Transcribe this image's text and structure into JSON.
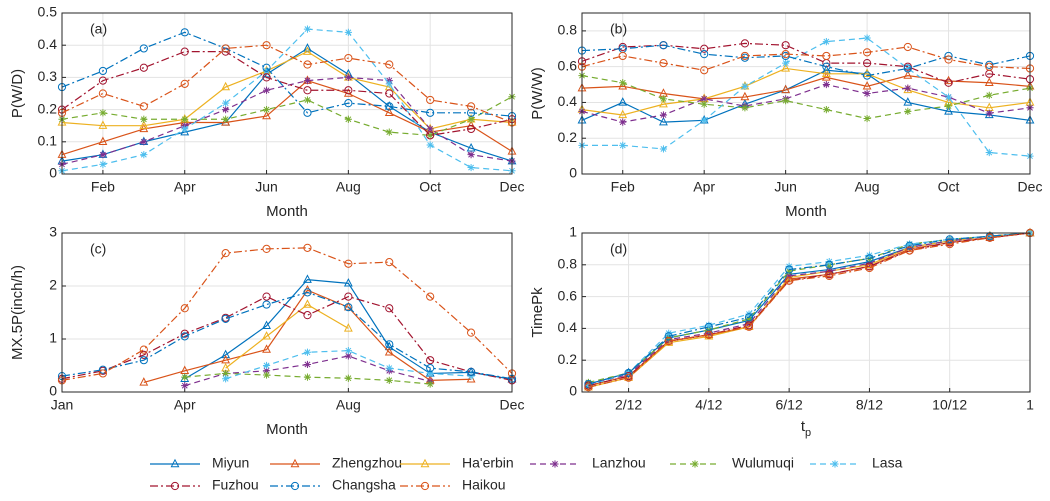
{
  "chart_data": [
    {
      "type": "line",
      "title": "(a)",
      "xlabel": "Month",
      "ylabel": "P(W/D)",
      "x": [
        1,
        2,
        3,
        4,
        5,
        6,
        7,
        8,
        9,
        10,
        11,
        12
      ],
      "xlim": [
        1,
        12
      ],
      "xticks": [
        {
          "value": 2,
          "label": "Feb"
        },
        {
          "value": 4,
          "label": "Apr"
        },
        {
          "value": 6,
          "label": "Jun"
        },
        {
          "value": 8,
          "label": "Aug"
        },
        {
          "value": 10,
          "label": "Oct"
        },
        {
          "value": 12,
          "label": "Dec"
        }
      ],
      "ylim": [
        0,
        0.5
      ],
      "yticks": [
        0,
        0.1,
        0.2,
        0.3,
        0.4,
        0.5
      ],
      "grid": true,
      "series": [
        {
          "name": "Miyun",
          "color": "#0072BD",
          "dash": "solid",
          "marker": "triangle",
          "values": [
            0.04,
            0.06,
            0.1,
            0.13,
            0.16,
            0.31,
            0.39,
            0.31,
            0.21,
            0.13,
            0.08,
            0.04
          ]
        },
        {
          "name": "Zhengzhou",
          "color": "#D95319",
          "dash": "solid",
          "marker": "triangle",
          "values": [
            0.06,
            0.1,
            0.14,
            0.16,
            0.16,
            0.18,
            0.29,
            0.25,
            0.19,
            0.13,
            0.15,
            0.07
          ]
        },
        {
          "name": "Ha'erbin",
          "color": "#EDB120",
          "dash": "solid",
          "marker": "triangle",
          "values": [
            0.16,
            0.15,
            0.15,
            0.17,
            0.27,
            0.32,
            0.38,
            0.3,
            0.27,
            0.14,
            0.17,
            0.16
          ]
        },
        {
          "name": "Lanzhou",
          "color": "#7E2F8E",
          "dash": "dash",
          "marker": "star",
          "values": [
            0.03,
            0.06,
            0.1,
            0.15,
            0.2,
            0.26,
            0.29,
            0.3,
            0.29,
            0.14,
            0.06,
            0.04
          ]
        },
        {
          "name": "Wulumuqi",
          "color": "#77AC30",
          "dash": "dash",
          "marker": "star",
          "values": [
            0.17,
            0.19,
            0.17,
            0.17,
            0.17,
            0.2,
            0.23,
            0.17,
            0.13,
            0.12,
            0.17,
            0.24
          ]
        },
        {
          "name": "Lasa",
          "color": "#4DBEEE",
          "dash": "dash",
          "marker": "star",
          "values": [
            0.01,
            0.03,
            0.06,
            0.14,
            0.22,
            0.32,
            0.45,
            0.44,
            0.28,
            0.09,
            0.02,
            0.01
          ]
        },
        {
          "name": "Fuzhou",
          "color": "#A2142F",
          "dash": "dashdot",
          "marker": "circle",
          "values": [
            0.2,
            0.29,
            0.33,
            0.38,
            0.38,
            0.3,
            0.26,
            0.26,
            0.25,
            0.12,
            0.14,
            0.17
          ]
        },
        {
          "name": "Changsha",
          "color": "#0072BD",
          "dash": "dashdot",
          "marker": "circle",
          "values": [
            0.27,
            0.32,
            0.39,
            0.44,
            0.39,
            0.33,
            0.19,
            0.22,
            0.21,
            0.19,
            0.19,
            0.18
          ]
        },
        {
          "name": "Haikou",
          "color": "#D95319",
          "dash": "dashdot",
          "marker": "circle",
          "values": [
            0.19,
            0.25,
            0.21,
            0.28,
            0.39,
            0.4,
            0.34,
            0.36,
            0.34,
            0.23,
            0.21,
            0.16
          ]
        }
      ]
    },
    {
      "type": "line",
      "title": "(b)",
      "xlabel": "Month",
      "ylabel": "P(W/W)",
      "x": [
        1,
        2,
        3,
        4,
        5,
        6,
        7,
        8,
        9,
        10,
        11,
        12
      ],
      "xlim": [
        1,
        12
      ],
      "xticks": [
        {
          "value": 2,
          "label": "Feb"
        },
        {
          "value": 4,
          "label": "Apr"
        },
        {
          "value": 6,
          "label": "Jun"
        },
        {
          "value": 8,
          "label": "Aug"
        },
        {
          "value": 10,
          "label": "Oct"
        },
        {
          "value": 12,
          "label": "Dec"
        }
      ],
      "ylim": [
        0,
        0.9
      ],
      "yticks": [
        0,
        0.2,
        0.4,
        0.6,
        0.8
      ],
      "grid": true,
      "series": [
        {
          "name": "Miyun",
          "color": "#0072BD",
          "dash": "solid",
          "marker": "triangle",
          "values": [
            0.3,
            0.4,
            0.29,
            0.3,
            0.39,
            0.47,
            0.58,
            0.56,
            0.4,
            0.35,
            0.33,
            0.3
          ]
        },
        {
          "name": "Zhengzhou",
          "color": "#D95319",
          "dash": "solid",
          "marker": "triangle",
          "values": [
            0.48,
            0.49,
            0.45,
            0.42,
            0.43,
            0.47,
            0.54,
            0.49,
            0.55,
            0.52,
            0.51,
            0.49
          ]
        },
        {
          "name": "Ha'erbin",
          "color": "#EDB120",
          "dash": "solid",
          "marker": "triangle",
          "values": [
            0.36,
            0.33,
            0.39,
            0.42,
            0.49,
            0.59,
            0.56,
            0.56,
            0.47,
            0.4,
            0.37,
            0.4
          ]
        },
        {
          "name": "Lanzhou",
          "color": "#7E2F8E",
          "dash": "dash",
          "marker": "star",
          "values": [
            0.35,
            0.29,
            0.33,
            0.42,
            0.38,
            0.42,
            0.5,
            0.45,
            0.48,
            0.43,
            0.34,
            0.37
          ]
        },
        {
          "name": "Wulumuqi",
          "color": "#77AC30",
          "dash": "dash",
          "marker": "star",
          "values": [
            0.55,
            0.51,
            0.42,
            0.39,
            0.37,
            0.41,
            0.36,
            0.31,
            0.35,
            0.38,
            0.44,
            0.48
          ]
        },
        {
          "name": "Lasa",
          "color": "#4DBEEE",
          "dash": "dash",
          "marker": "star",
          "values": [
            0.16,
            0.16,
            0.14,
            0.3,
            0.49,
            0.62,
            0.74,
            0.76,
            0.59,
            0.43,
            0.12,
            0.1
          ]
        },
        {
          "name": "Fuzhou",
          "color": "#A2142F",
          "dash": "dashdot",
          "marker": "circle",
          "values": [
            0.63,
            0.71,
            0.72,
            0.7,
            0.73,
            0.72,
            0.62,
            0.62,
            0.6,
            0.51,
            0.56,
            0.53
          ]
        },
        {
          "name": "Changsha",
          "color": "#0072BD",
          "dash": "dashdot",
          "marker": "circle",
          "values": [
            0.69,
            0.7,
            0.72,
            0.67,
            0.65,
            0.66,
            0.6,
            0.55,
            0.59,
            0.66,
            0.61,
            0.66
          ]
        },
        {
          "name": "Haikou",
          "color": "#D95319",
          "dash": "dashdot",
          "marker": "circle",
          "values": [
            0.6,
            0.66,
            0.62,
            0.58,
            0.66,
            0.67,
            0.66,
            0.68,
            0.71,
            0.64,
            0.6,
            0.59
          ]
        }
      ]
    },
    {
      "type": "line",
      "title": "(c)",
      "xlabel": "Month",
      "ylabel": "MX.5P(inch/h)",
      "x": [
        1,
        2,
        3,
        4,
        5,
        6,
        7,
        8,
        9,
        10,
        11,
        12
      ],
      "xlim": [
        1,
        12
      ],
      "xticks": [
        {
          "value": 1,
          "label": "Jan"
        },
        {
          "value": 4,
          "label": "Apr"
        },
        {
          "value": 8,
          "label": "Aug"
        },
        {
          "value": 12,
          "label": "Dec"
        }
      ],
      "ylim": [
        0,
        3
      ],
      "yticks": [
        0,
        1,
        2,
        3
      ],
      "grid": true,
      "series": [
        {
          "name": "Miyun",
          "color": "#0072BD",
          "dash": "solid",
          "marker": "triangle",
          "values": [
            null,
            null,
            null,
            0.25,
            0.7,
            1.25,
            2.12,
            2.05,
            0.85,
            0.35,
            0.37,
            0.24
          ]
        },
        {
          "name": "Zhengzhou",
          "color": "#D95319",
          "dash": "solid",
          "marker": "triangle",
          "values": [
            null,
            null,
            0.18,
            0.4,
            0.6,
            0.8,
            1.92,
            1.6,
            0.75,
            0.22,
            0.24,
            null
          ]
        },
        {
          "name": "Ha'erbin",
          "color": "#EDB120",
          "dash": "solid",
          "marker": "triangle",
          "values": [
            null,
            null,
            null,
            null,
            0.45,
            1.05,
            1.65,
            1.2,
            null,
            null,
            null,
            null
          ]
        },
        {
          "name": "Lanzhou",
          "color": "#7E2F8E",
          "dash": "dash",
          "marker": "star",
          "values": [
            null,
            null,
            null,
            0.12,
            0.35,
            0.4,
            0.52,
            0.68,
            0.4,
            0.2,
            null,
            null
          ]
        },
        {
          "name": "Wulumuqi",
          "color": "#77AC30",
          "dash": "dash",
          "marker": "star",
          "values": [
            null,
            null,
            null,
            0.28,
            0.35,
            0.32,
            0.28,
            0.26,
            0.22,
            0.15,
            null,
            null
          ]
        },
        {
          "name": "Lasa",
          "color": "#4DBEEE",
          "dash": "dash",
          "marker": "star",
          "values": [
            null,
            null,
            null,
            null,
            0.25,
            0.5,
            0.75,
            0.78,
            0.45,
            0.35,
            0.3,
            null
          ]
        },
        {
          "name": "Fuzhou",
          "color": "#A2142F",
          "dash": "dashdot",
          "marker": "circle",
          "values": [
            0.25,
            0.4,
            0.7,
            1.1,
            1.4,
            1.8,
            1.45,
            1.8,
            1.58,
            0.6,
            0.38,
            0.22
          ]
        },
        {
          "name": "Changsha",
          "color": "#0072BD",
          "dash": "dashdot",
          "marker": "circle",
          "values": [
            0.3,
            0.42,
            0.6,
            1.05,
            1.38,
            1.65,
            1.88,
            1.6,
            0.9,
            0.45,
            0.38,
            0.25
          ]
        },
        {
          "name": "Haikou",
          "color": "#D95319",
          "dash": "dashdot",
          "marker": "circle",
          "values": [
            0.22,
            0.35,
            0.8,
            1.58,
            2.62,
            2.7,
            2.72,
            2.42,
            2.45,
            1.8,
            1.12,
            0.35
          ]
        }
      ]
    },
    {
      "type": "line",
      "title": "(d)",
      "xlabel": "t",
      "xlabel_subscript": "p",
      "ylabel": "TimePk",
      "x": [
        0.0833,
        0.1667,
        0.25,
        0.3333,
        0.4167,
        0.5,
        0.5833,
        0.6667,
        0.75,
        0.8333,
        0.9167,
        1
      ],
      "xlim": [
        0.07,
        1
      ],
      "xticks": [
        {
          "value": 0.1667,
          "label": "2/12"
        },
        {
          "value": 0.3333,
          "label": "4/12"
        },
        {
          "value": 0.5,
          "label": "6/12"
        },
        {
          "value": 0.6667,
          "label": "8/12"
        },
        {
          "value": 0.8333,
          "label": "10/12"
        },
        1
      ],
      "ylim": [
        0,
        1
      ],
      "yticks": [
        0,
        0.2,
        0.4,
        0.6,
        0.8,
        1
      ],
      "grid": true,
      "series": [
        {
          "name": "Miyun",
          "color": "#0072BD",
          "dash": "solid",
          "marker": "triangle",
          "values": [
            0.05,
            0.12,
            0.34,
            0.39,
            0.45,
            0.74,
            0.77,
            0.82,
            0.91,
            0.95,
            0.98,
            1
          ]
        },
        {
          "name": "Zhengzhou",
          "color": "#D95319",
          "dash": "solid",
          "marker": "triangle",
          "values": [
            0.04,
            0.1,
            0.32,
            0.36,
            0.41,
            0.71,
            0.74,
            0.79,
            0.9,
            0.94,
            0.97,
            1
          ]
        },
        {
          "name": "Ha'erbin",
          "color": "#EDB120",
          "dash": "solid",
          "marker": "triangle",
          "values": [
            0.03,
            0.09,
            0.31,
            0.35,
            0.41,
            0.72,
            0.76,
            0.8,
            0.91,
            0.95,
            0.98,
            1
          ]
        },
        {
          "name": "Lanzhou",
          "color": "#7E2F8E",
          "dash": "dash",
          "marker": "star",
          "values": [
            0.05,
            0.11,
            0.33,
            0.37,
            0.43,
            0.73,
            0.76,
            0.81,
            0.91,
            0.95,
            0.98,
            1
          ]
        },
        {
          "name": "Wulumuqi",
          "color": "#77AC30",
          "dash": "dash",
          "marker": "star",
          "values": [
            0.06,
            0.12,
            0.34,
            0.39,
            0.46,
            0.76,
            0.8,
            0.84,
            0.93,
            0.96,
            0.98,
            1
          ]
        },
        {
          "name": "Lasa",
          "color": "#4DBEEE",
          "dash": "dash",
          "marker": "star",
          "values": [
            0.04,
            0.12,
            0.37,
            0.42,
            0.49,
            0.79,
            0.82,
            0.86,
            0.93,
            0.96,
            0.98,
            1
          ]
        },
        {
          "name": "Fuzhou",
          "color": "#A2142F",
          "dash": "dashdot",
          "marker": "circle",
          "values": [
            0.04,
            0.1,
            0.32,
            0.36,
            0.42,
            0.7,
            0.74,
            0.79,
            0.89,
            0.94,
            0.97,
            1
          ]
        },
        {
          "name": "Changsha",
          "color": "#0072BD",
          "dash": "dashdot",
          "marker": "circle",
          "values": [
            0.05,
            0.12,
            0.35,
            0.41,
            0.47,
            0.77,
            0.8,
            0.84,
            0.92,
            0.96,
            0.98,
            1
          ]
        },
        {
          "name": "Haikou",
          "color": "#D95319",
          "dash": "dashdot",
          "marker": "circle",
          "values": [
            0.03,
            0.09,
            0.32,
            0.36,
            0.41,
            0.7,
            0.73,
            0.78,
            0.89,
            0.93,
            0.97,
            1
          ]
        }
      ]
    }
  ]
}
